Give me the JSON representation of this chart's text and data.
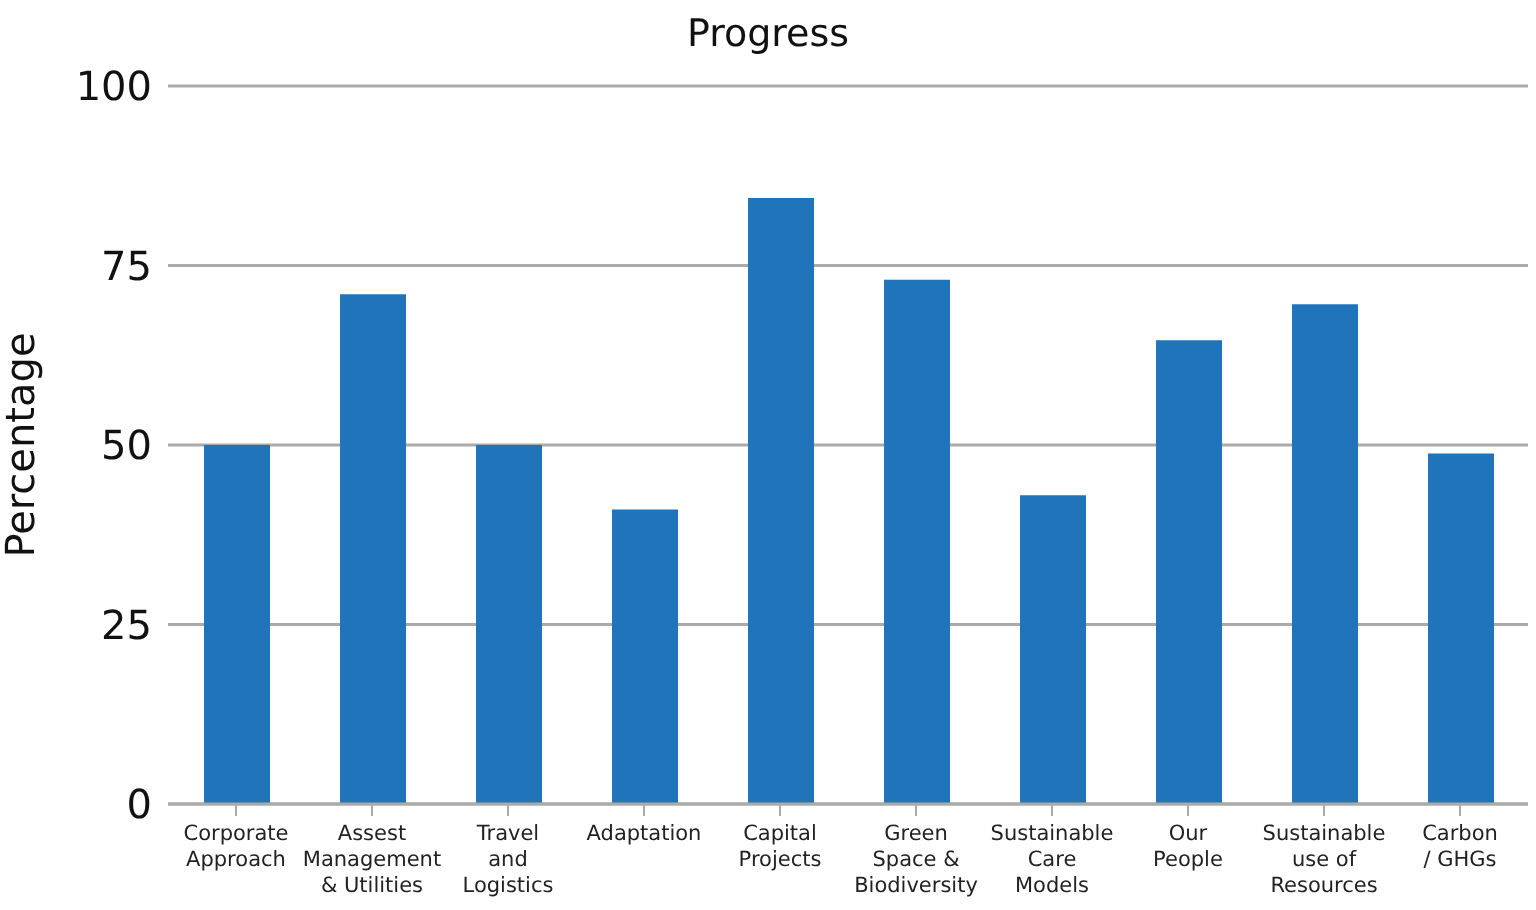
{
  "chart_data": {
    "type": "bar",
    "title": "Progress",
    "ylabel": "Percentage",
    "categories": [
      "Corporate\nApproach",
      "Assest\nManagement\n& Utilities",
      "Travel\nand\nLogistics",
      "Adaptation",
      "Capital\nProjects",
      "Green\nSpace &\nBiodiversity",
      "Sustainable\nCare\nModels",
      "Our\nPeople",
      "Sustainable\nuse of\nResources",
      "Carbon\n/ GHGs"
    ],
    "values": [
      50,
      71,
      50,
      41,
      84.4,
      73,
      43,
      64.6,
      69.6,
      48.8
    ],
    "color": "#1f74ba",
    "ylim": [
      0,
      100
    ],
    "yticks": [
      0,
      25,
      50,
      75,
      100
    ],
    "grid": "y"
  }
}
